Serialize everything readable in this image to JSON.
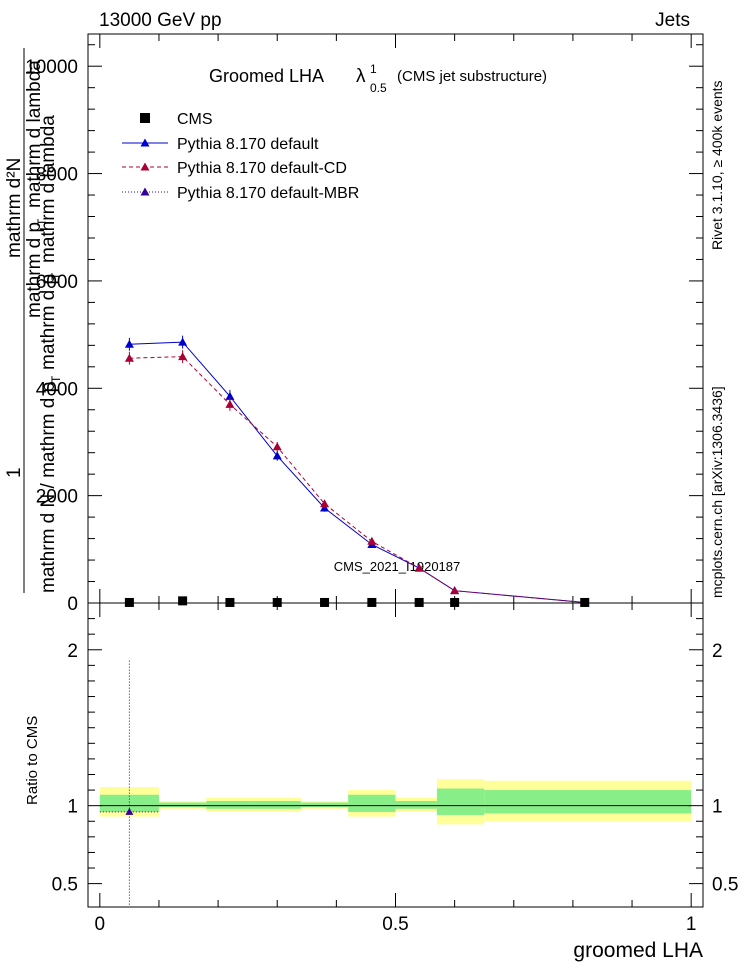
{
  "header": {
    "left": "13000 GeV pp",
    "right": "Jets"
  },
  "side_labels": {
    "rivet": "Rivet 3.1.10, ≥ 400k events",
    "mcplots": "mcplots.cern.ch [arXiv:1306.3436]"
  },
  "watermark": "CMS_2021_I1920187",
  "chart_data": [
    {
      "type": "line",
      "title_main": "Groomed LHA",
      "title_lambda": "λ",
      "title_sup": "1",
      "title_sub": "0.5",
      "title_suffix": "(CMS jet substructure)",
      "ylabel_top": "1",
      "ylabel_frac_top": "mathrm d²N",
      "ylabel_frac_top2": "mathrm d p",
      "ylabel_frac_top3": "T",
      "ylabel_frac_top4": "mathrm d lambda",
      "ylabel_bottom": "mathrm d N / mathrm d p",
      "ylabel_bottom_sub": "T",
      "ylabel_bottom_end": "mathrm d p",
      "ylabel_bottom_sub2": "T",
      "ylabel_bottom_tail": "mathrm d lambda",
      "ylim": [
        0,
        10600
      ],
      "yticks": [
        0,
        2000,
        4000,
        6000,
        8000,
        10000
      ],
      "ytick_labels": [
        "0",
        "2000",
        "4000",
        "6000",
        "8000",
        "10000"
      ],
      "xlim": [
        -0.02,
        1.02
      ],
      "legend": [
        "CMS",
        "Pythia 8.170 default",
        "Pythia 8.170 default-CD",
        "Pythia 8.170 default-MBR"
      ],
      "colors": {
        "cms": "#000000",
        "default": "#0000cc",
        "cd": "#aa0033",
        "mbr": "#330099"
      },
      "cms": {
        "x": [
          0.05,
          0.14,
          0.22,
          0.3,
          0.38,
          0.46,
          0.54,
          0.6,
          0.82
        ],
        "y": [
          10,
          40,
          10,
          10,
          10,
          10,
          10,
          10,
          10
        ]
      },
      "series": [
        {
          "name": "Pythia 8.170 default",
          "x": [
            0.05,
            0.14,
            0.22,
            0.3,
            0.38,
            0.46,
            0.54,
            0.6,
            0.82
          ],
          "y": [
            4820,
            4860,
            3850,
            2740,
            1770,
            1090,
            650,
            230,
            10
          ],
          "err": [
            120,
            120,
            120,
            90,
            70,
            50,
            40,
            20,
            5
          ]
        },
        {
          "name": "Pythia 8.170 default-CD",
          "x": [
            0.05,
            0.14,
            0.22,
            0.3,
            0.38,
            0.46,
            0.54,
            0.6,
            0.82
          ],
          "y": [
            4560,
            4590,
            3700,
            2910,
            1850,
            1150,
            650,
            230,
            10
          ],
          "err": [
            120,
            120,
            120,
            90,
            70,
            50,
            40,
            20,
            5
          ]
        }
      ]
    },
    {
      "type": "line",
      "ylabel": "Ratio to CMS",
      "xlabel": "groomed LHA",
      "ylim": [
        0.35,
        2.3
      ],
      "yticks": [
        0.5,
        1,
        2
      ],
      "ytick_labels": [
        "0.5",
        "1",
        "2"
      ],
      "xlim": [
        -0.02,
        1.02
      ],
      "xticks": [
        0,
        0.5,
        1
      ],
      "xtick_labels": [
        "0",
        "0.5",
        "1"
      ],
      "bins": [
        0,
        0.1,
        0.18,
        0.26,
        0.34,
        0.42,
        0.5,
        0.57,
        0.65,
        1.0
      ],
      "yellow": [
        [
          0.93,
          1.12
        ],
        [
          0.98,
          1.03
        ],
        [
          0.96,
          1.05
        ],
        [
          0.96,
          1.05
        ],
        [
          0.98,
          1.03
        ],
        [
          0.93,
          1.1
        ],
        [
          0.96,
          1.05
        ],
        [
          0.88,
          1.17
        ],
        [
          0.9,
          1.16
        ]
      ],
      "green": [
        [
          0.96,
          1.07
        ],
        [
          0.99,
          1.02
        ],
        [
          0.98,
          1.03
        ],
        [
          0.98,
          1.03
        ],
        [
          0.99,
          1.02
        ],
        [
          0.96,
          1.07
        ],
        [
          0.98,
          1.03
        ],
        [
          0.94,
          1.11
        ],
        [
          0.95,
          1.1
        ]
      ],
      "ratio_point": {
        "x": 0.05,
        "y": 0.96,
        "err_high": 1.93
      }
    }
  ]
}
